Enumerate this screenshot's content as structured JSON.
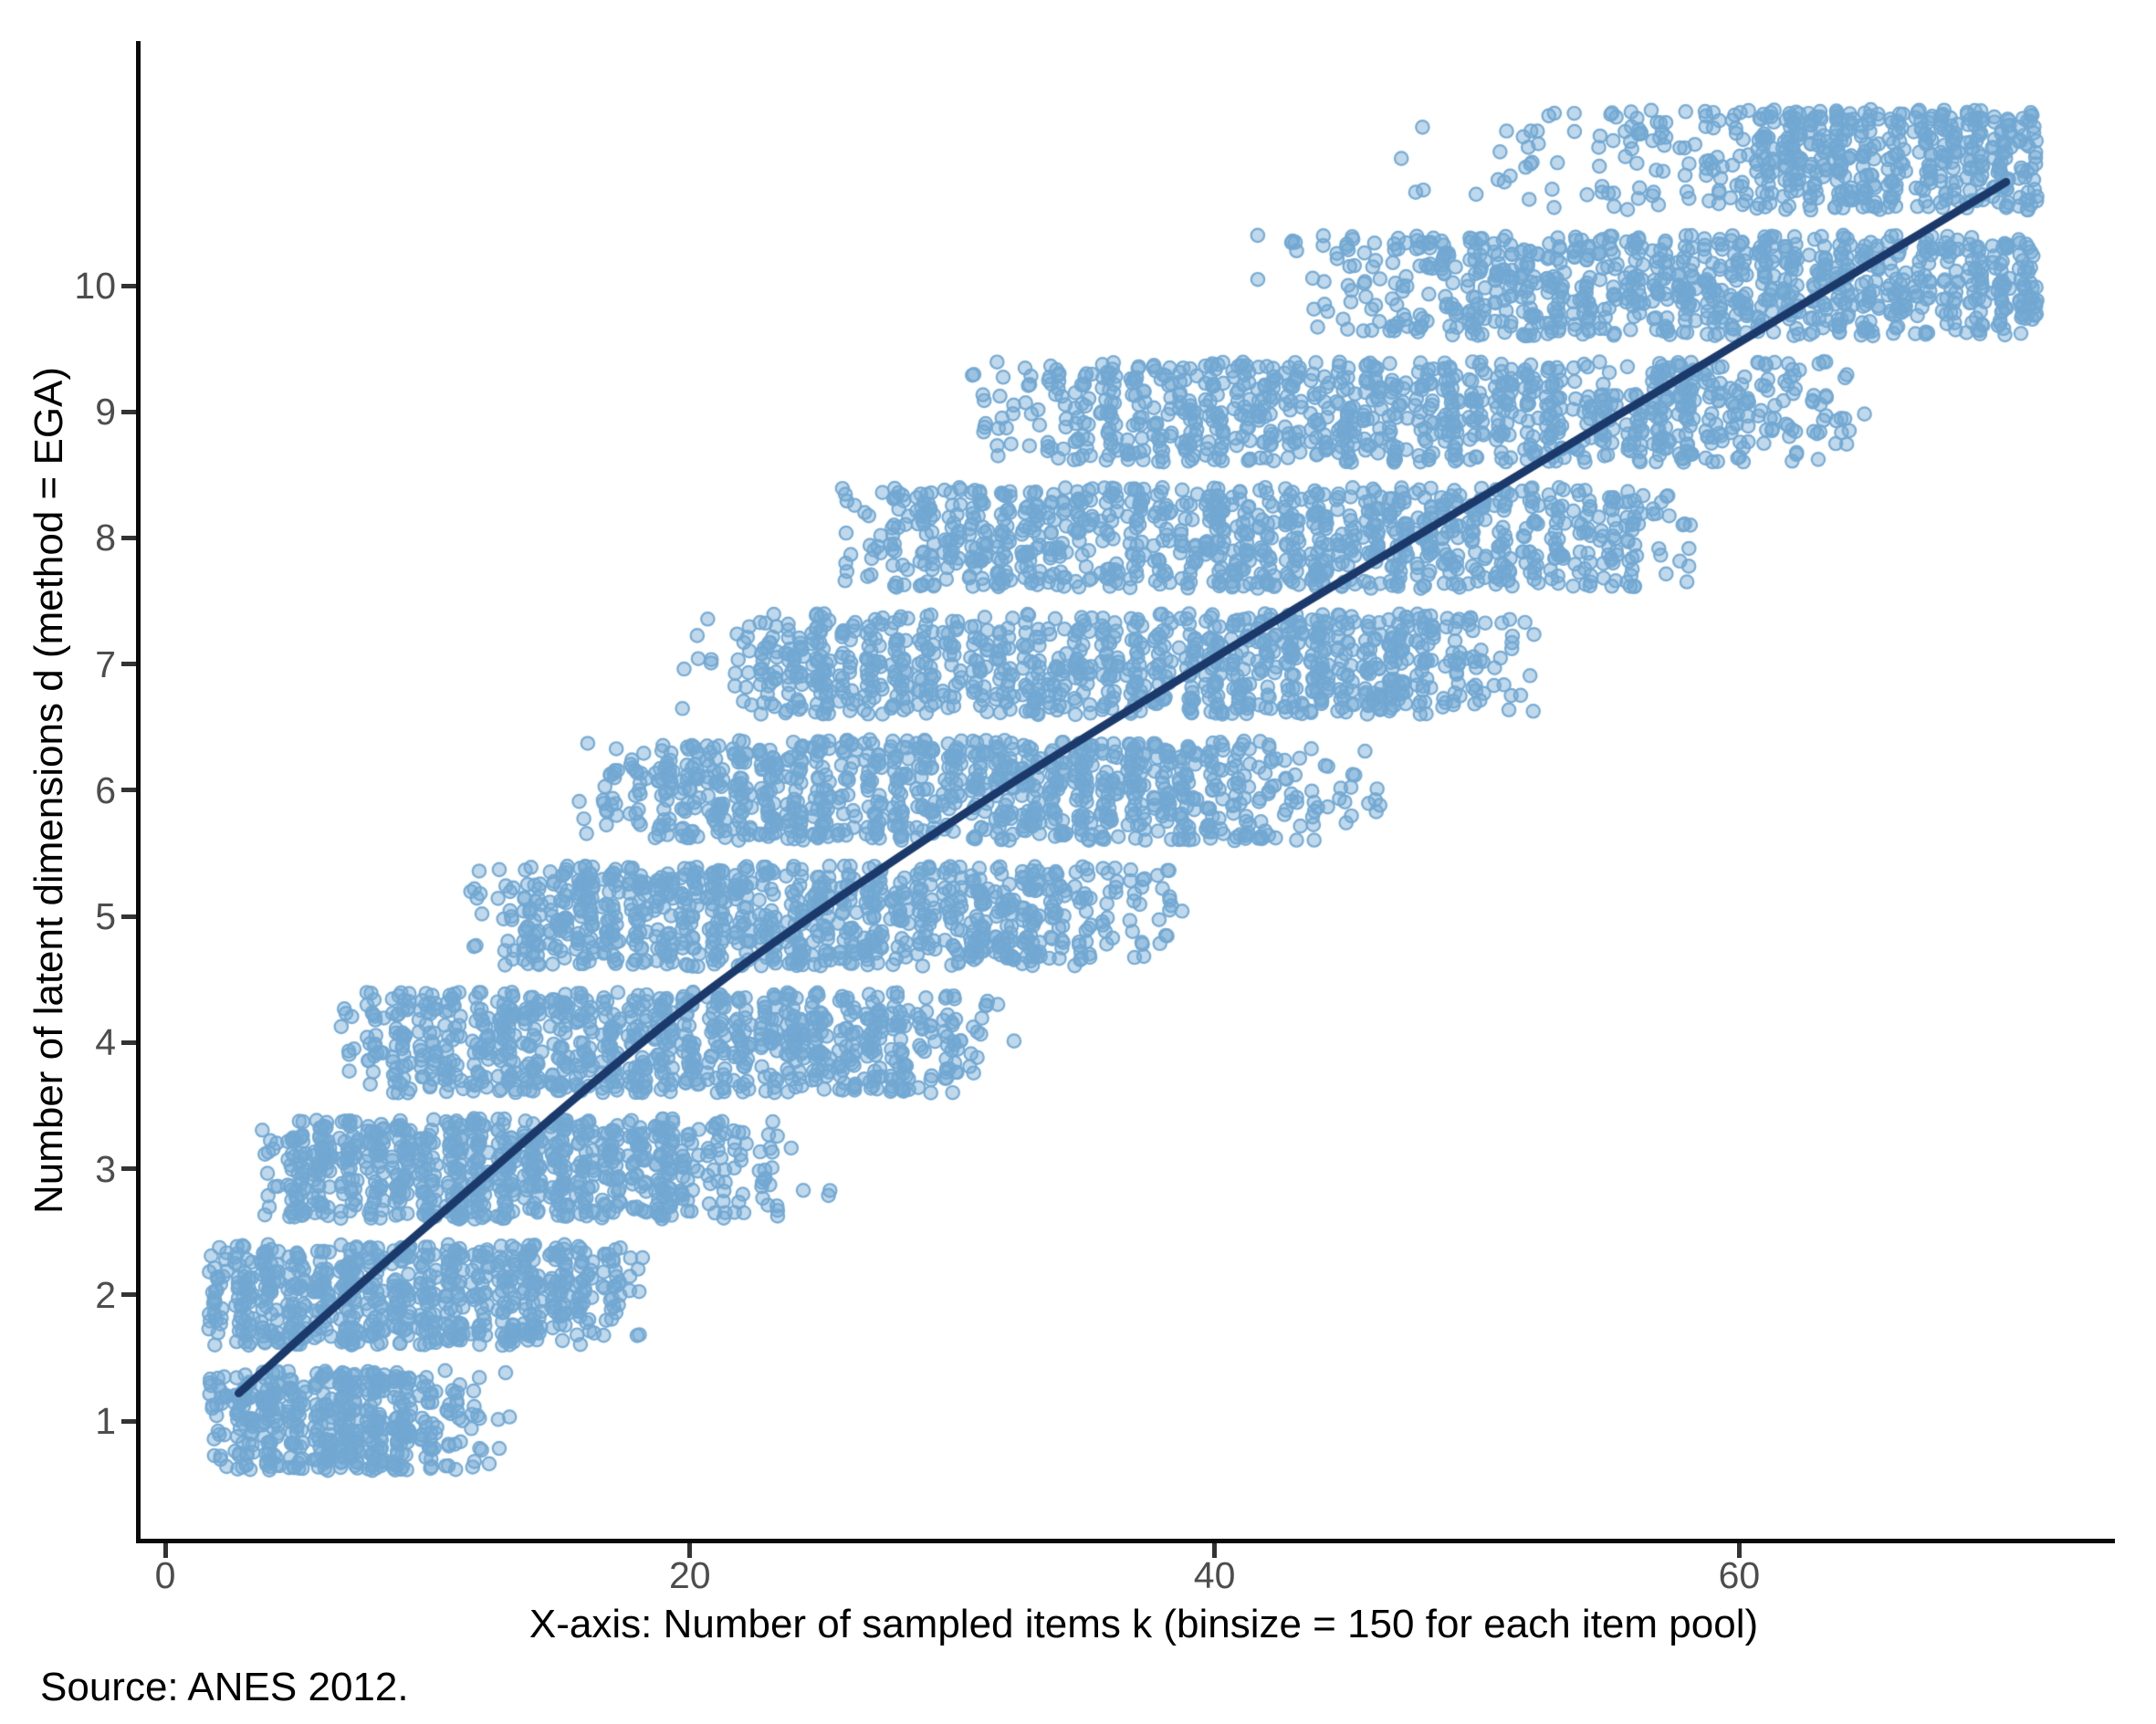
{
  "annotations": {
    "source_note": "Source: ANES 2012."
  },
  "chart_data": {
    "type": "scatter",
    "title": "",
    "xlabel": "X-axis: Number of sampled items k (binsize = 150 for each item pool)",
    "ylabel": "Number of latent dimensions d (method = EGA)",
    "x_ticks": [
      0,
      20,
      40,
      60
    ],
    "y_ticks": [
      1,
      2,
      3,
      4,
      5,
      6,
      7,
      8,
      9,
      10
    ],
    "xlim": [
      -1.1,
      74.3
    ],
    "ylim": [
      0.1,
      11.95
    ],
    "grid": false,
    "legend": false,
    "colors": {
      "point_fill": "rgba(114,168,210,0.45)",
      "point_stroke": "rgba(114,168,210,0.95)",
      "trend_line": "#1b3a6b",
      "axis_line": "#0a0a0a",
      "tick_mark": "#333333",
      "tick_label": "#4d4d4d",
      "axis_title": "#000000"
    },
    "point_radius_px": 7.2,
    "jitter": {
      "width": 0.36,
      "height": 0.4
    },
    "bands": [
      {
        "d": 1,
        "x_tail_lo": 2,
        "x_core_lo": 3,
        "x_core_hi": 9,
        "x_tail_hi": 13,
        "n": 520,
        "left_frac": 0.06,
        "right_frac": 0.13
      },
      {
        "d": 2,
        "x_tail_lo": 2,
        "x_core_lo": 3,
        "x_core_hi": 15,
        "x_tail_hi": 18,
        "n": 760,
        "left_frac": 0.05,
        "right_frac": 0.1
      },
      {
        "d": 3,
        "x_tail_lo": 4,
        "x_core_lo": 6,
        "x_core_hi": 19,
        "x_tail_hi": 25,
        "n": 850,
        "left_frac": 0.07,
        "right_frac": 0.1
      },
      {
        "d": 4,
        "x_tail_lo": 7,
        "x_core_lo": 10,
        "x_core_hi": 27,
        "x_tail_hi": 32,
        "n": 900,
        "left_frac": 0.07,
        "right_frac": 0.1
      },
      {
        "d": 5,
        "x_tail_lo": 12,
        "x_core_lo": 15,
        "x_core_hi": 33,
        "x_tail_hi": 39,
        "n": 950,
        "left_frac": 0.07,
        "right_frac": 0.1
      },
      {
        "d": 6,
        "x_tail_lo": 16,
        "x_core_lo": 20,
        "x_core_hi": 40,
        "x_tail_hi": 46,
        "n": 1000,
        "left_frac": 0.07,
        "right_frac": 0.1
      },
      {
        "d": 7,
        "x_tail_lo": 20,
        "x_core_lo": 25,
        "x_core_hi": 47,
        "x_tail_hi": 52,
        "n": 1000,
        "left_frac": 0.07,
        "right_frac": 0.1
      },
      {
        "d": 8,
        "x_tail_lo": 26,
        "x_core_lo": 30,
        "x_core_hi": 53,
        "x_tail_hi": 58,
        "n": 1000,
        "left_frac": 0.07,
        "right_frac": 0.1
      },
      {
        "d": 9,
        "x_tail_lo": 31,
        "x_core_lo": 36,
        "x_core_hi": 59,
        "x_tail_hi": 65,
        "n": 950,
        "left_frac": 0.07,
        "right_frac": 0.1
      },
      {
        "d": 10,
        "x_tail_lo": 42,
        "x_core_lo": 50,
        "x_core_hi": 71,
        "x_tail_hi": 71,
        "n": 900,
        "left_frac": 0.12,
        "right_frac": 0.0
      },
      {
        "d": 11,
        "x_tail_lo": 47,
        "x_core_lo": 61,
        "x_core_hi": 71,
        "x_tail_hi": 71,
        "n": 560,
        "left_frac": 0.18,
        "right_frac": 0.0
      }
    ],
    "trend_points": [
      {
        "x": 2.8,
        "d": 1.22
      },
      {
        "x": 10,
        "d": 2.55
      },
      {
        "x": 20,
        "d": 4.3
      },
      {
        "x": 30,
        "d": 5.75
      },
      {
        "x": 40,
        "d": 7.05
      },
      {
        "x": 50,
        "d": 8.3
      },
      {
        "x": 60,
        "d": 9.55
      },
      {
        "x": 70.4,
        "d": 10.85
      }
    ]
  }
}
